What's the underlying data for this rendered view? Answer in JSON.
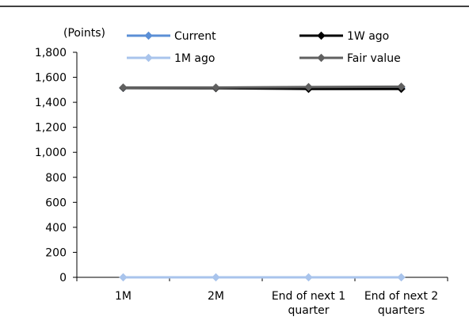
{
  "chart_data": {
    "type": "line",
    "y_unit_label": "(Points)",
    "categories": [
      [
        "1M"
      ],
      [
        "2M"
      ],
      [
        "End of next 1",
        "quarter"
      ],
      [
        "End of next 2",
        "quarters"
      ]
    ],
    "ylim": [
      0,
      1800
    ],
    "yticks": [
      0,
      200,
      400,
      600,
      800,
      1000,
      1200,
      1400,
      1600,
      1800
    ],
    "ytick_labels": [
      "0",
      "200",
      "400",
      "600",
      "800",
      "1,000",
      "1,200",
      "1,400",
      "1,600",
      "1,800"
    ],
    "grid": false,
    "legend_position": "top",
    "series": [
      {
        "name": "Current",
        "values": [
          1515,
          1515,
          1515,
          1515
        ],
        "color": "#5b8fd6",
        "marker": "diamond"
      },
      {
        "name": "1W ago",
        "values": [
          1515,
          1513,
          1507,
          1507
        ],
        "color": "#000000",
        "marker": "diamond"
      },
      {
        "name": "1M ago",
        "values": [
          0,
          0,
          0,
          0
        ],
        "color": "#a9c4ec",
        "marker": "diamond"
      },
      {
        "name": "Fair value",
        "values": [
          1518,
          1518,
          1522,
          1525
        ],
        "color": "#606060",
        "marker": "diamond"
      }
    ],
    "draw_order": [
      2,
      0,
      1,
      3
    ]
  }
}
